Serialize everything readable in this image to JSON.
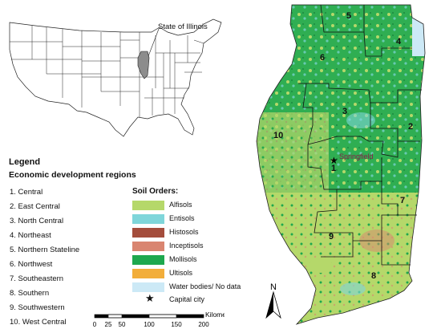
{
  "inset": {
    "callout_label": "State of Illinois"
  },
  "legend": {
    "title": "Legend",
    "regions_title": "Economic development regions",
    "regions": [
      "1. Central",
      "2. East Central",
      "3. North Central",
      "4. Northeast",
      "5. Northern Stateline",
      "6. Northwest",
      "7. Southeastern",
      "8. Southern",
      "9. Southwestern",
      "10. West Central"
    ],
    "soil_title": "Soil Orders:",
    "soils": [
      {
        "label": "Alfisols",
        "color": "#b5d86a"
      },
      {
        "label": "Entisols",
        "color": "#7fd6da"
      },
      {
        "label": "Histosols",
        "color": "#a44d3c"
      },
      {
        "label": "Inceptisols",
        "color": "#d98570"
      },
      {
        "label": "Mollisols",
        "color": "#1ea84e"
      },
      {
        "label": "Ultisols",
        "color": "#f2ae3b"
      },
      {
        "label": "Water bodies/ No data",
        "color": "#cce9f6"
      }
    ],
    "capital_label": "Capital city"
  },
  "map": {
    "region_labels": [
      "1",
      "2",
      "3",
      "4",
      "5",
      "6",
      "7",
      "8",
      "9",
      "10"
    ],
    "capital_name": "Springfield"
  },
  "scale": {
    "unit": "Kilometers",
    "ticks": [
      "0",
      "25",
      "50",
      "100",
      "150",
      "200"
    ]
  },
  "north": {
    "label": "N"
  }
}
